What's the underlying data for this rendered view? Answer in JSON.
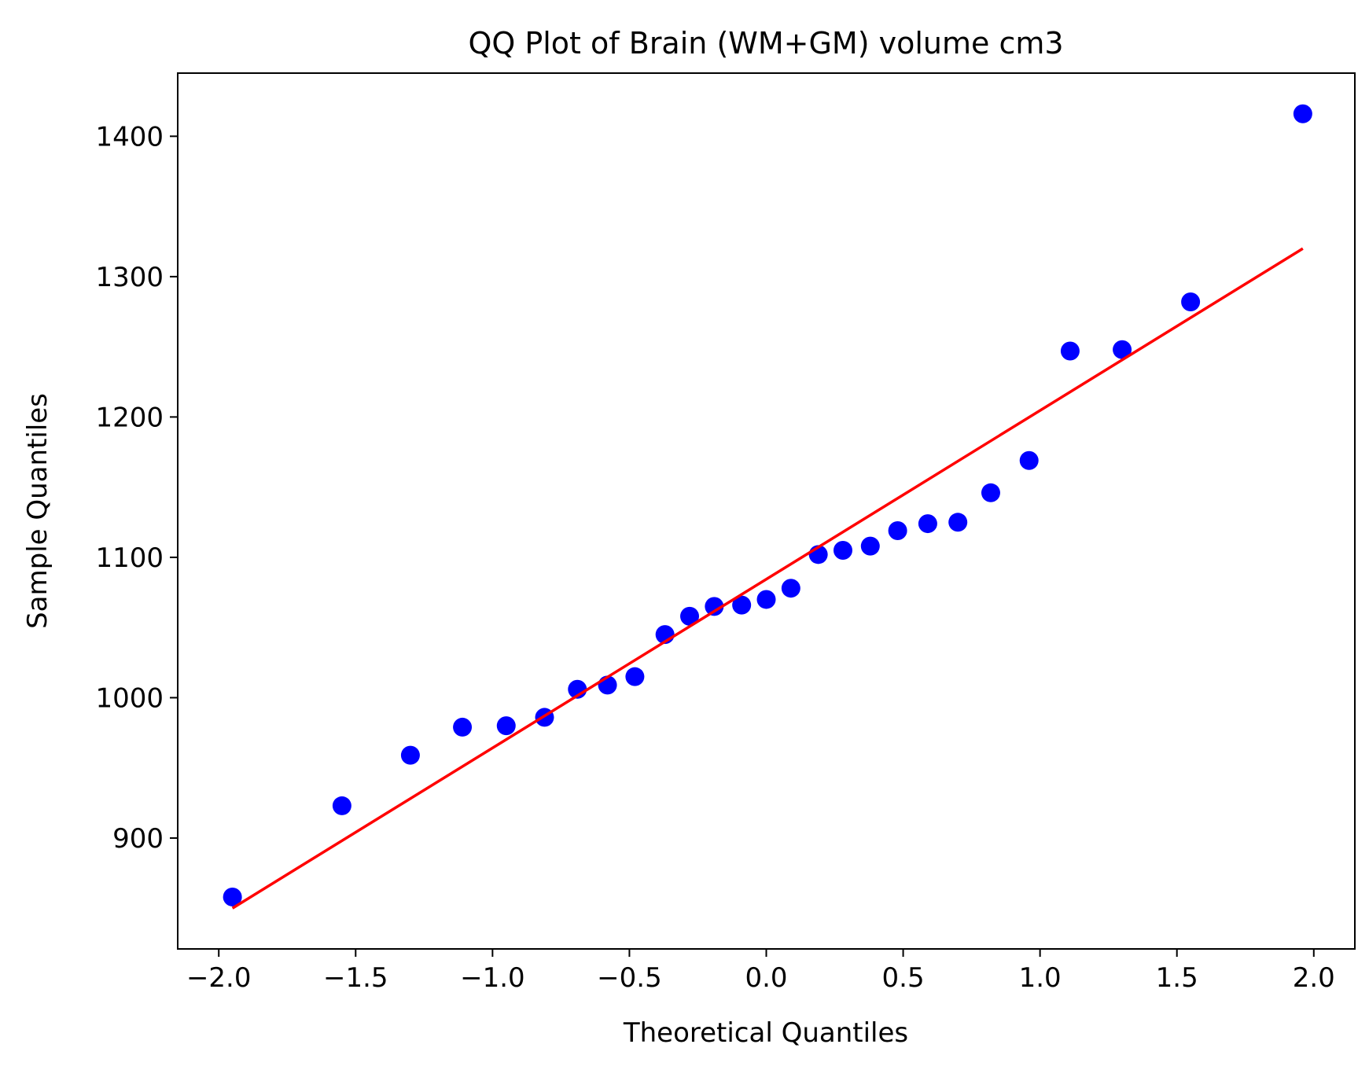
{
  "chart_data": {
    "type": "scatter",
    "title": "QQ Plot of Brain (WM+GM) volume cm3",
    "xlabel": "Theoretical Quantiles",
    "ylabel": "Sample Quantiles",
    "xlim": [
      -2.15,
      2.15
    ],
    "ylim": [
      821,
      1445
    ],
    "grid": false,
    "x_ticks": [
      -2.0,
      -1.5,
      -1.0,
      -0.5,
      0.0,
      0.5,
      1.0,
      1.5,
      2.0
    ],
    "x_tick_labels": [
      "−2.0",
      "−1.5",
      "−1.0",
      "−0.5",
      "0.0",
      "0.5",
      "1.0",
      "1.5",
      "2.0"
    ],
    "y_ticks": [
      900,
      1000,
      1100,
      1200,
      1300,
      1400
    ],
    "y_tick_labels": [
      "900",
      "1000",
      "1100",
      "1200",
      "1300",
      "1400"
    ],
    "series": [
      {
        "type": "scatter",
        "color": "#0000ff",
        "points": [
          {
            "x": -1.95,
            "y": 858
          },
          {
            "x": -1.55,
            "y": 923
          },
          {
            "x": -1.3,
            "y": 959
          },
          {
            "x": -1.11,
            "y": 979
          },
          {
            "x": -0.95,
            "y": 980
          },
          {
            "x": -0.81,
            "y": 986
          },
          {
            "x": -0.69,
            "y": 1006
          },
          {
            "x": -0.58,
            "y": 1009
          },
          {
            "x": -0.48,
            "y": 1015
          },
          {
            "x": -0.37,
            "y": 1045
          },
          {
            "x": -0.28,
            "y": 1058
          },
          {
            "x": -0.19,
            "y": 1065
          },
          {
            "x": -0.09,
            "y": 1066
          },
          {
            "x": 0.0,
            "y": 1070
          },
          {
            "x": 0.09,
            "y": 1078
          },
          {
            "x": 0.19,
            "y": 1102
          },
          {
            "x": 0.28,
            "y": 1105
          },
          {
            "x": 0.38,
            "y": 1108
          },
          {
            "x": 0.48,
            "y": 1119
          },
          {
            "x": 0.59,
            "y": 1124
          },
          {
            "x": 0.7,
            "y": 1125
          },
          {
            "x": 0.82,
            "y": 1146
          },
          {
            "x": 0.96,
            "y": 1169
          },
          {
            "x": 1.11,
            "y": 1247
          },
          {
            "x": 1.3,
            "y": 1248
          },
          {
            "x": 1.55,
            "y": 1282
          },
          {
            "x": 1.96,
            "y": 1416
          }
        ]
      },
      {
        "type": "line",
        "color": "#ff0000",
        "x": [
          -1.95,
          1.96
        ],
        "y": [
          850,
          1320
        ]
      }
    ]
  }
}
